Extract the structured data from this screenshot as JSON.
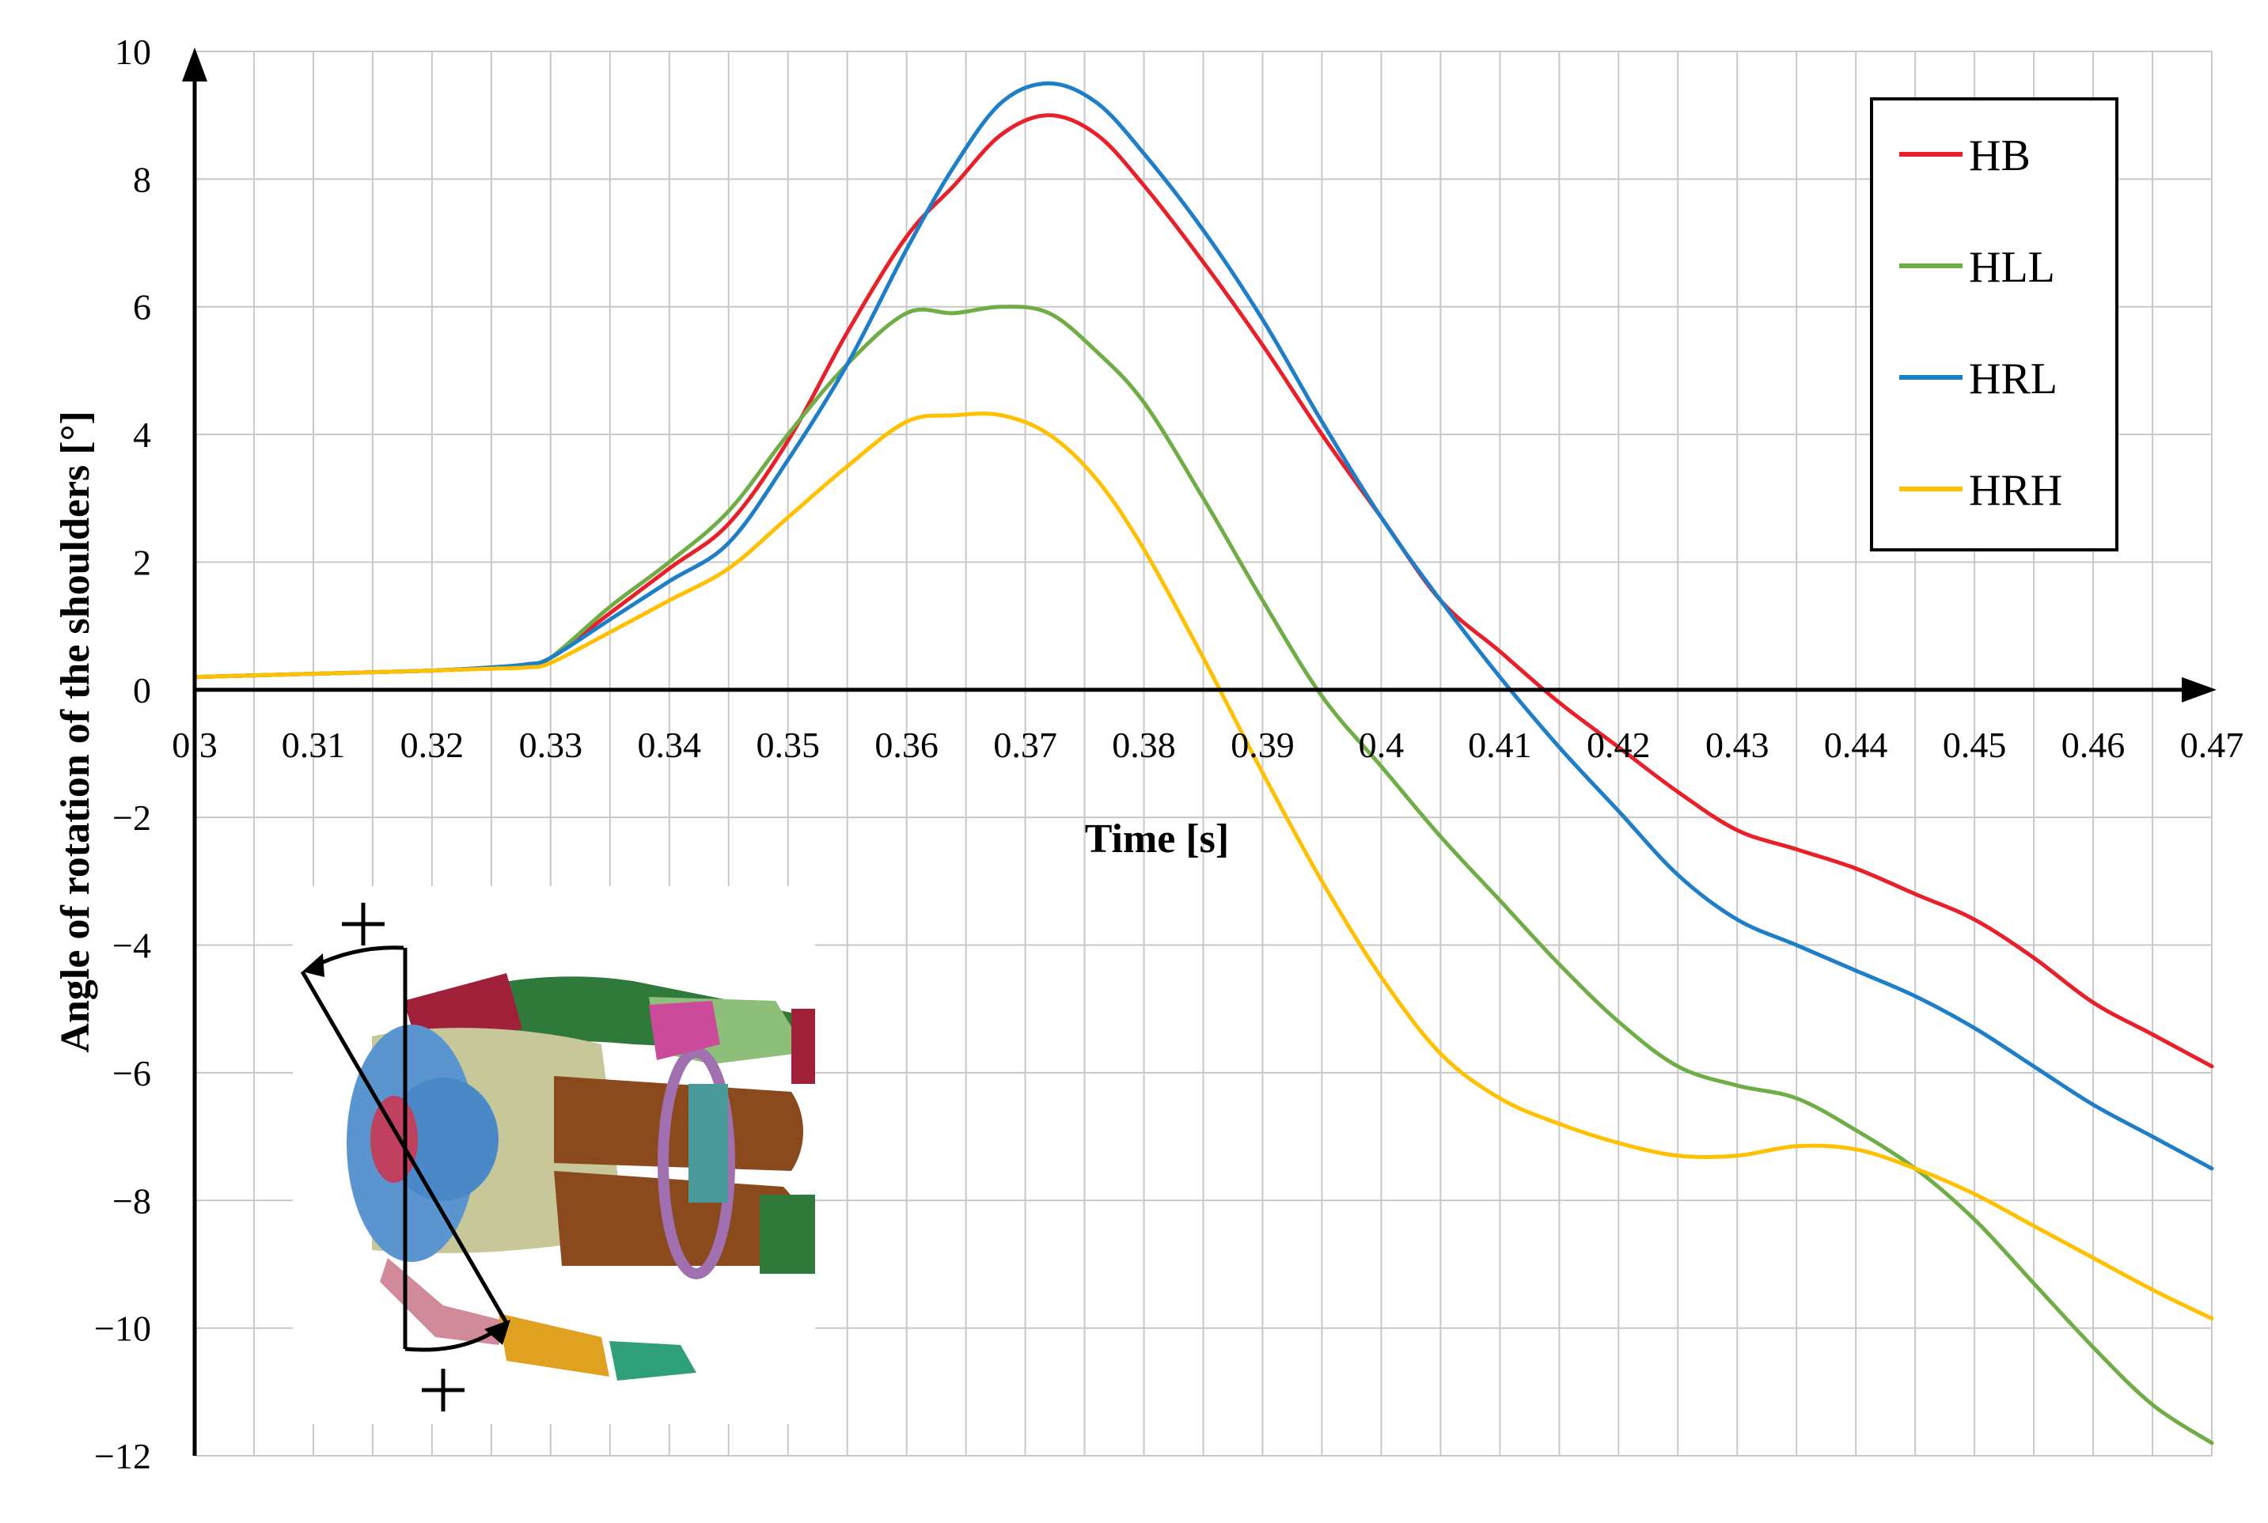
{
  "chart_data": {
    "type": "line",
    "title": "",
    "xlabel": "Time [s]",
    "ylabel": "Angle of rotation of the shoulders [°]",
    "xlim": [
      0.3,
      0.47
    ],
    "ylim": [
      -12,
      10
    ],
    "x_ticks": [
      0.3,
      0.31,
      0.32,
      0.33,
      0.34,
      0.35,
      0.36,
      0.37,
      0.38,
      0.39,
      0.4,
      0.41,
      0.42,
      0.43,
      0.44,
      0.45,
      0.46,
      0.47
    ],
    "x_tick_labels": [
      "0.3",
      "0.31",
      "0.32",
      "0.33",
      "0.34",
      "0.35",
      "0.36",
      "0.37",
      "0.38",
      "0.39",
      "0.4",
      "0.41",
      "0.42",
      "0.43",
      "0.44",
      "0.45",
      "0.46",
      "0.47"
    ],
    "y_ticks": [
      -12,
      -10,
      -8,
      -6,
      -4,
      -2,
      0,
      2,
      4,
      6,
      8,
      10
    ],
    "y_tick_labels": [
      "−12",
      "−10",
      "−8",
      "−6",
      "−4",
      "−2",
      "0",
      "2",
      "4",
      "6",
      "8",
      "10"
    ],
    "grid": true,
    "legend_position": "top-right",
    "series": [
      {
        "name": "HB",
        "color": "#e8202a",
        "x": [
          0.3,
          0.31,
          0.32,
          0.325,
          0.328,
          0.33,
          0.335,
          0.34,
          0.345,
          0.35,
          0.355,
          0.36,
          0.364,
          0.368,
          0.372,
          0.376,
          0.38,
          0.385,
          0.39,
          0.395,
          0.4,
          0.405,
          0.41,
          0.415,
          0.42,
          0.425,
          0.43,
          0.435,
          0.44,
          0.445,
          0.45,
          0.455,
          0.46,
          0.465,
          0.47
        ],
        "y": [
          0.2,
          0.25,
          0.3,
          0.35,
          0.4,
          0.5,
          1.2,
          1.9,
          2.6,
          3.9,
          5.6,
          7.1,
          7.9,
          8.7,
          9.0,
          8.7,
          7.9,
          6.7,
          5.4,
          4.0,
          2.7,
          1.4,
          0.6,
          -0.2,
          -0.9,
          -1.6,
          -2.2,
          -2.5,
          -2.8,
          -3.2,
          -3.6,
          -4.2,
          -4.9,
          -5.4,
          -5.9
        ]
      },
      {
        "name": "HLL",
        "color": "#70ad47",
        "x": [
          0.3,
          0.31,
          0.32,
          0.325,
          0.328,
          0.33,
          0.335,
          0.34,
          0.345,
          0.35,
          0.355,
          0.36,
          0.364,
          0.368,
          0.372,
          0.376,
          0.38,
          0.385,
          0.39,
          0.395,
          0.4,
          0.405,
          0.41,
          0.415,
          0.42,
          0.425,
          0.43,
          0.435,
          0.44,
          0.445,
          0.45,
          0.455,
          0.46,
          0.465,
          0.47
        ],
        "y": [
          0.2,
          0.25,
          0.3,
          0.35,
          0.4,
          0.5,
          1.3,
          2.0,
          2.8,
          4.0,
          5.1,
          5.9,
          5.9,
          6.0,
          5.9,
          5.3,
          4.5,
          3.0,
          1.4,
          -0.1,
          -1.2,
          -2.3,
          -3.3,
          -4.3,
          -5.2,
          -5.9,
          -6.2,
          -6.4,
          -6.9,
          -7.5,
          -8.3,
          -9.3,
          -10.3,
          -11.2,
          -11.8
        ]
      },
      {
        "name": "HRL",
        "color": "#1f7ec8",
        "x": [
          0.3,
          0.31,
          0.32,
          0.325,
          0.328,
          0.33,
          0.335,
          0.34,
          0.345,
          0.35,
          0.355,
          0.36,
          0.364,
          0.368,
          0.372,
          0.376,
          0.38,
          0.385,
          0.39,
          0.395,
          0.4,
          0.405,
          0.41,
          0.415,
          0.42,
          0.425,
          0.43,
          0.435,
          0.44,
          0.445,
          0.45,
          0.455,
          0.46,
          0.465,
          0.47
        ],
        "y": [
          0.2,
          0.25,
          0.3,
          0.35,
          0.4,
          0.5,
          1.1,
          1.7,
          2.3,
          3.6,
          5.1,
          6.9,
          8.2,
          9.2,
          9.5,
          9.2,
          8.4,
          7.2,
          5.8,
          4.2,
          2.7,
          1.4,
          0.2,
          -0.9,
          -1.9,
          -2.9,
          -3.6,
          -4.0,
          -4.4,
          -4.8,
          -5.3,
          -5.9,
          -6.5,
          -7.0,
          -7.5
        ]
      },
      {
        "name": "HRH",
        "color": "#ffc000",
        "x": [
          0.3,
          0.31,
          0.32,
          0.325,
          0.328,
          0.33,
          0.335,
          0.34,
          0.345,
          0.35,
          0.355,
          0.36,
          0.364,
          0.368,
          0.372,
          0.376,
          0.38,
          0.385,
          0.39,
          0.395,
          0.4,
          0.405,
          0.41,
          0.415,
          0.42,
          0.425,
          0.43,
          0.435,
          0.44,
          0.445,
          0.45,
          0.455,
          0.46,
          0.465,
          0.47
        ],
        "y": [
          0.2,
          0.25,
          0.3,
          0.33,
          0.35,
          0.42,
          0.9,
          1.4,
          1.9,
          2.7,
          3.5,
          4.2,
          4.3,
          4.3,
          4.0,
          3.3,
          2.2,
          0.5,
          -1.3,
          -3.0,
          -4.5,
          -5.7,
          -6.4,
          -6.8,
          -7.1,
          -7.3,
          -7.3,
          -7.15,
          -7.2,
          -7.5,
          -7.9,
          -8.4,
          -8.9,
          -9.4,
          -9.85
        ]
      }
    ]
  }
}
